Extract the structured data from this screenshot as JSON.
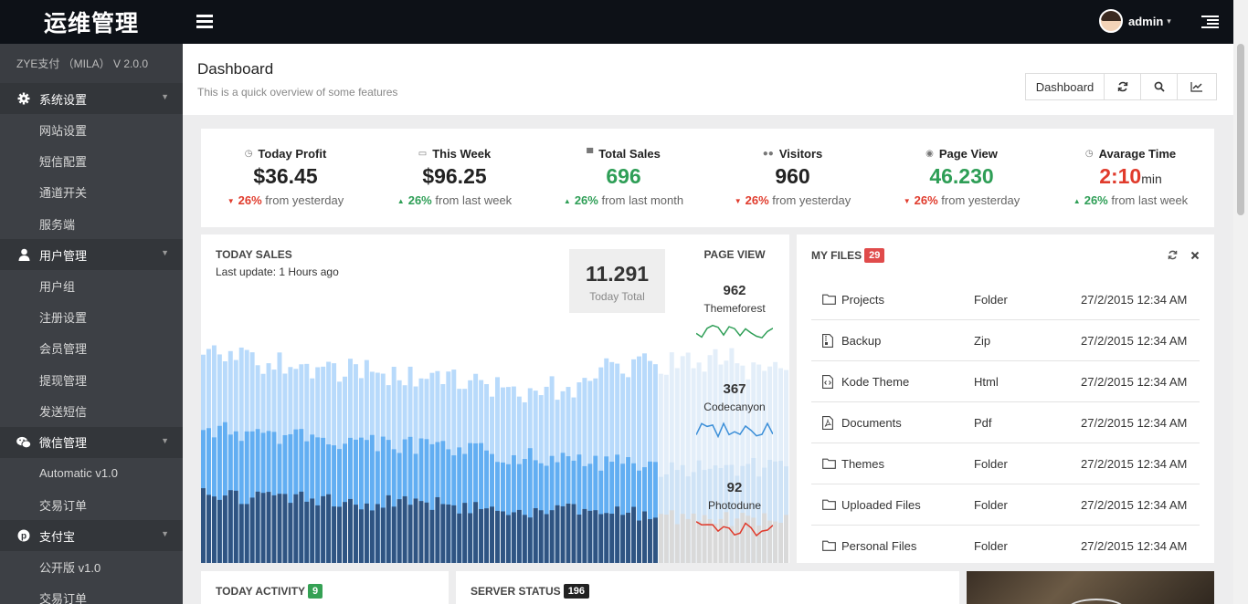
{
  "app": {
    "brand": "运维管理",
    "user": "admin"
  },
  "sidebar": {
    "version": "ZYE支付 （MILA） V 2.0.0",
    "sections": [
      {
        "label": "系统设置",
        "icon": "gear-icon",
        "items": [
          "网站设置",
          "短信配置",
          "通道开关",
          "服务端"
        ]
      },
      {
        "label": "用户管理",
        "icon": "user-icon",
        "items": [
          "用户组",
          "注册设置",
          "会员管理",
          "提现管理",
          "发送短信"
        ]
      },
      {
        "label": "微信管理",
        "icon": "wechat-icon",
        "items": [
          "Automatic v1.0",
          "交易订单"
        ]
      },
      {
        "label": "支付宝",
        "icon": "alipay-icon",
        "items": [
          "公开版 v1.0",
          "交易订单"
        ]
      }
    ]
  },
  "header": {
    "title": "Dashboard",
    "subtitle": "This is a quick overview of some features",
    "actions": {
      "dashboard": "Dashboard",
      "refresh": "refresh-icon",
      "search": "search-icon",
      "chart": "line-chart-icon"
    }
  },
  "stats": [
    {
      "label": "Today Profit",
      "icon": "clock-icon",
      "value": "$36.45",
      "unit": "",
      "value_color": "#222222",
      "trend": "down",
      "delta": "26%",
      "compare": "from yesterday"
    },
    {
      "label": "This Week",
      "icon": "calendar-icon",
      "value": "$96.25",
      "unit": "",
      "value_color": "#222222",
      "trend": "up",
      "delta": "26%",
      "compare": "from last week"
    },
    {
      "label": "Total Sales",
      "icon": "cart-icon",
      "value": "696",
      "unit": "",
      "value_color": "#2e9e56",
      "trend": "up",
      "delta": "26%",
      "compare": "from last month"
    },
    {
      "label": "Visitors",
      "icon": "users-icon",
      "value": "960",
      "unit": "",
      "value_color": "#222222",
      "trend": "down",
      "delta": "26%",
      "compare": "from yesterday"
    },
    {
      "label": "Page View",
      "icon": "eye-icon",
      "value": "46.230",
      "unit": "",
      "value_color": "#2e9e56",
      "trend": "down",
      "delta": "26%",
      "compare": "from yesterday"
    },
    {
      "label": "Avarage Time",
      "icon": "clock-icon",
      "value": "2:10",
      "unit": "min",
      "value_color": "#e03b2c",
      "trend": "up",
      "delta": "26%",
      "compare": "from last week"
    }
  ],
  "today_sales": {
    "title": "TODAY SALES",
    "last_update": "Last update: 1 Hours ago",
    "total": "11.291",
    "total_label": "Today Total"
  },
  "page_view": {
    "title": "PAGE VIEW",
    "items": [
      {
        "value": "962",
        "label": "Themeforest",
        "color": "#2e9e56"
      },
      {
        "value": "367",
        "label": "Codecanyon",
        "color": "#3c8fd8"
      },
      {
        "value": "92",
        "label": "Photodune",
        "color": "#e03b2c"
      }
    ]
  },
  "my_files": {
    "title": "MY FILES",
    "count": "29",
    "rows": [
      {
        "name": "Projects",
        "type": "Folder",
        "date": "27/2/2015 12:34 AM",
        "icon": "folder-icon"
      },
      {
        "name": "Backup",
        "type": "Zip",
        "date": "27/2/2015 12:34 AM",
        "icon": "file-zip-icon"
      },
      {
        "name": "Kode Theme",
        "type": "Html",
        "date": "27/2/2015 12:34 AM",
        "icon": "file-code-icon"
      },
      {
        "name": "Documents",
        "type": "Pdf",
        "date": "27/2/2015 12:34 AM",
        "icon": "file-pdf-icon"
      },
      {
        "name": "Themes",
        "type": "Folder",
        "date": "27/2/2015 12:34 AM",
        "icon": "folder-icon"
      },
      {
        "name": "Uploaded Files",
        "type": "Folder",
        "date": "27/2/2015 12:34 AM",
        "icon": "folder-icon"
      },
      {
        "name": "Personal Files",
        "type": "Folder",
        "date": "27/2/2015 12:34 AM",
        "icon": "folder-icon"
      }
    ]
  },
  "today_activity": {
    "title": "TODAY ACTIVITY",
    "count": "9"
  },
  "server_status": {
    "title": "SERVER STATUS",
    "count": "196"
  },
  "colors": {
    "bar_dark": "#2f5482",
    "bar_mid": "#62aef2",
    "bar_light": "#b8dafb"
  }
}
